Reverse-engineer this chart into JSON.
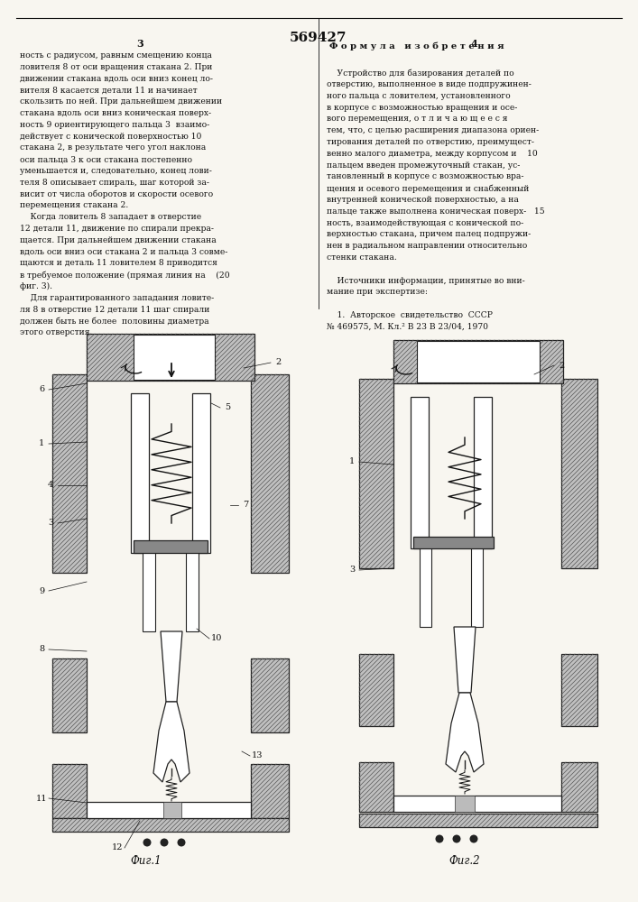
{
  "patent_number": "569427",
  "page_left": "3",
  "page_right": "4",
  "background_color": "#f8f6f0",
  "text_color": "#111111",
  "fig1_caption": "Фиг.1",
  "fig2_caption": "Фиг.2",
  "formula_header": "Ф о р м у л а   и з о б р е т е н и я",
  "left_col": [
    "ность с радиусом, равным смещению конца",
    "ловителя 8 от оси вращения стакана 2. При",
    "движении стакана вдоль оси вниз конец ло-",
    "вителя 8 касается детали 11 и начинает",
    "скользить по ней. При дальнейшем движении",
    "стакана вдоль оси вниз коническая поверх-",
    "ность 9 ориентирующего пальца 3  взаимо-",
    "действует с конической поверхностью 10",
    "стакана 2, в результате чего угол наклона",
    "оси пальца 3 к оси стакана постепенно",
    "уменьшается и, следовательно, конец лови-",
    "теля 8 описывает спираль, шаг которой за-",
    "висит от числа оборотов и скорости осевого",
    "перемещения стакана 2.",
    "    Когда ловитель 8 западает в отверстие",
    "12 детали 11, движение по спирали прекра-",
    "щается. При дальнейшем движении стакана",
    "вдоль оси вниз оси стакана 2 и пальца 3 совме-",
    "щаются и деталь 11 ловителем 8 приводится",
    "в требуемое положение (прямая линия на    (20",
    "фиг. 3).",
    "    Для гарантированного западания ловите-",
    "ля 8 в отверстие 12 детали 11 шаг спирали",
    "должен быть не более  половины диаметра",
    "этого отверстия."
  ],
  "right_col": [
    "    Устройство для базирования деталей по",
    "отверстию, выполненное в виде подпружинен-",
    "ного пальца с ловителем, установленного",
    "в корпусе с возможностью вращения и осе-",
    "вого перемещения, о т л и ч а ю щ е е с я",
    "тем, что, с целью расширения диапазона ориен-",
    "тирования деталей по отверстию, преимущест-",
    "венно малого диаметра, между корпусом и    10",
    "пальцем введен промежуточный стакан, ус-",
    "тановленный в корпусе с возможностью вра-",
    "щения и осевого перемещения и снабженный",
    "внутренней конической поверхностью, а на",
    "пальце также выполнена коническая поверх-   15",
    "ность, взаимодействующая с конической по-",
    "верхностью стакана, причем палец подпружи-",
    "нен в радиальном направлении относительно",
    "стенки стакана.",
    "",
    "    Источники информации, принятые во вни-",
    "мание при экспертизе:",
    "",
    "    1.  Авторское  свидетельство  СССР",
    "№ 469575, М. Кл.² В 23 В 23/04, 1970"
  ]
}
